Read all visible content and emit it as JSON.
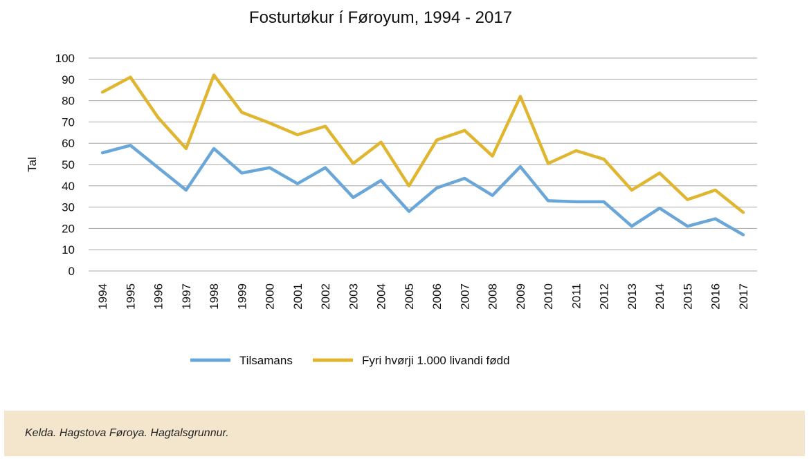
{
  "chart_data": {
    "type": "line",
    "title": "Fosturtøkur í Føroyum, 1994 - 2017",
    "ylabel": "Tal",
    "xlabel": "",
    "ylim": [
      0,
      100
    ],
    "yticks": [
      0,
      10,
      20,
      30,
      40,
      50,
      60,
      70,
      80,
      90,
      100
    ],
    "grid": true,
    "legend_position": "bottom",
    "categories": [
      "1994",
      "1995",
      "1996",
      "1997",
      "1998",
      "1999",
      "2000",
      "2001",
      "2002",
      "2003",
      "2004",
      "2005",
      "2006",
      "2007",
      "2008",
      "2009",
      "2010",
      "2011",
      "2012",
      "2013",
      "2014",
      "2015",
      "2016",
      "2017"
    ],
    "series": [
      {
        "name": "Tilsamans",
        "color": "#6aa7d8",
        "values": [
          55.5,
          59,
          48.5,
          38,
          57.5,
          46,
          48.5,
          41,
          48.5,
          34.5,
          42.5,
          28,
          39,
          43.5,
          35.5,
          49,
          33,
          32.5,
          32.5,
          21,
          29.5,
          21,
          24.5,
          17
        ]
      },
      {
        "name": "Fyri hvørji 1.000 livandi fødd",
        "color": "#e0b630",
        "values": [
          84,
          91,
          72,
          57.5,
          92,
          74.5,
          69.5,
          64,
          68,
          50.5,
          60.5,
          40,
          61.5,
          66,
          54,
          82,
          50.5,
          56.5,
          52.5,
          38,
          46,
          33.5,
          38,
          27.5
        ]
      }
    ]
  },
  "source": {
    "text": "Kelda. Hagstova Føroya. Hagtalsgrunnur."
  }
}
